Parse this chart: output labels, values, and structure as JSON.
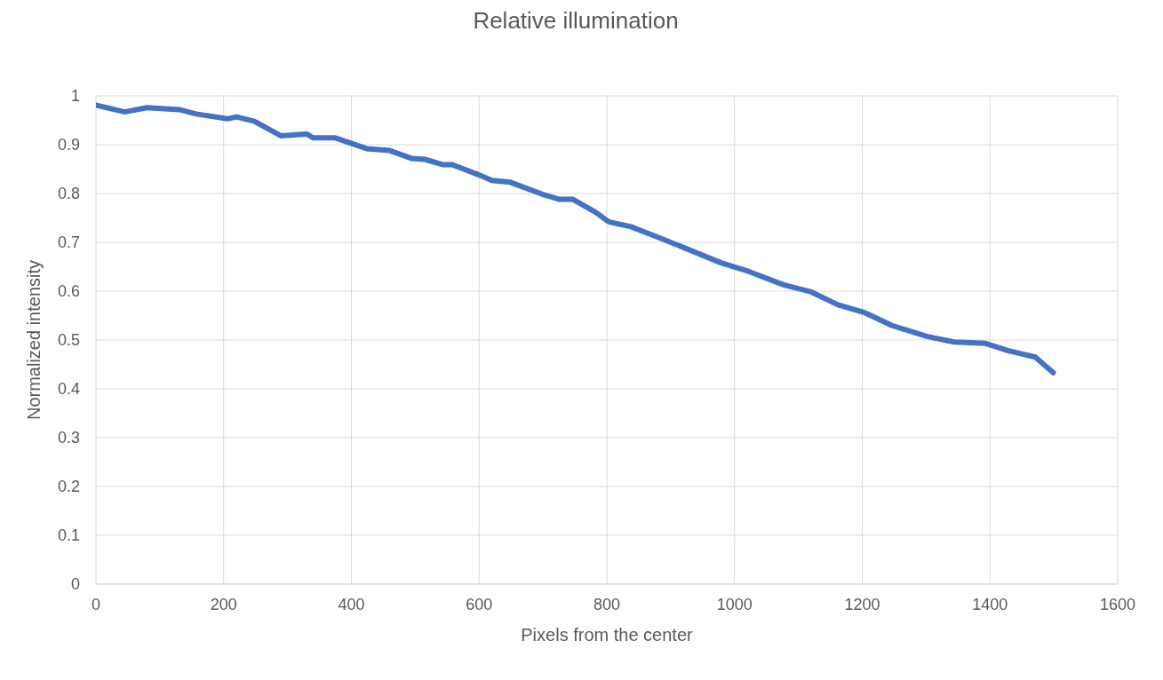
{
  "chart_data": {
    "type": "line",
    "title": "Relative illumination",
    "xlabel": "Pixels from the center",
    "ylabel": "Normalized intensity",
    "x": [
      0,
      45,
      80,
      130,
      157,
      206,
      220,
      248,
      290,
      330,
      340,
      375,
      424,
      460,
      494,
      515,
      544,
      558,
      600,
      620,
      649,
      698,
      726,
      747,
      782,
      803,
      838,
      881,
      923,
      979,
      1021,
      1077,
      1119,
      1162,
      1204,
      1246,
      1302,
      1344,
      1393,
      1429,
      1471,
      1499
    ],
    "series": [
      {
        "color": "#4472c4",
        "values": [
          0.981,
          0.967,
          0.976,
          0.972,
          0.963,
          0.953,
          0.957,
          0.948,
          0.918,
          0.922,
          0.914,
          0.914,
          0.892,
          0.888,
          0.872,
          0.87,
          0.859,
          0.859,
          0.838,
          0.827,
          0.823,
          0.799,
          0.788,
          0.788,
          0.762,
          0.742,
          0.732,
          0.71,
          0.688,
          0.658,
          0.641,
          0.613,
          0.599,
          0.572,
          0.556,
          0.53,
          0.507,
          0.496,
          0.493,
          0.478,
          0.465,
          0.433
        ]
      }
    ],
    "xlim": [
      0,
      1600
    ],
    "xticks": [
      0,
      200,
      400,
      600,
      800,
      1000,
      1200,
      1400,
      1600
    ],
    "ylim": [
      0,
      1
    ],
    "yticks": [
      0,
      0.1,
      0.2,
      0.3,
      0.4,
      0.5,
      0.6,
      0.7,
      0.8,
      0.9,
      1
    ],
    "grid": true,
    "legend": false,
    "marker": "none",
    "line_style": "solid"
  }
}
